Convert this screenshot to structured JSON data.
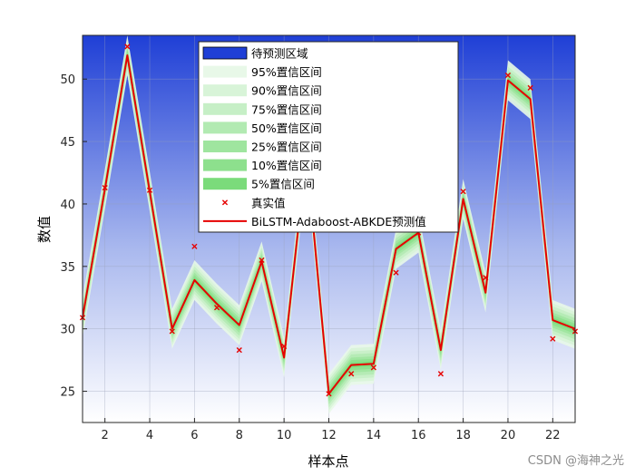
{
  "chart_data": {
    "type": "line",
    "title": "",
    "xlabel": "样本点",
    "ylabel": "数值",
    "xlim": [
      1,
      23
    ],
    "ylim": [
      22.5,
      53.5
    ],
    "xticks": [
      2,
      4,
      6,
      8,
      10,
      12,
      14,
      16,
      18,
      20,
      22
    ],
    "yticks": [
      25,
      30,
      35,
      40,
      45,
      50
    ],
    "grid": true,
    "legend_position": "top-center",
    "background": {
      "label": "待预测区域",
      "color_top": "#1f3fd6",
      "color_bottom": "#ffffff"
    },
    "x": [
      1,
      2,
      3,
      4,
      5,
      6,
      7,
      8,
      9,
      10,
      11,
      12,
      13,
      14,
      15,
      16,
      17,
      18,
      19,
      20,
      21,
      22,
      23
    ],
    "series": [
      {
        "name": "BiLSTM-Adaboost-ABKDE预测值",
        "color": "#e60000",
        "values": [
          30.9,
          41.2,
          51.9,
          41.0,
          30.0,
          33.9,
          32.0,
          30.3,
          35.4,
          27.7,
          44.0,
          24.8,
          27.1,
          27.2,
          36.4,
          37.7,
          28.3,
          40.4,
          32.9,
          49.9,
          48.4,
          30.7,
          30.0
        ]
      },
      {
        "name": "真实值",
        "color": "#e60000",
        "marker": "x",
        "values": [
          30.9,
          41.3,
          52.6,
          41.1,
          29.8,
          36.6,
          31.7,
          28.3,
          35.5,
          28.6,
          44.5,
          24.8,
          26.4,
          26.9,
          34.5,
          37.7,
          26.4,
          41.0,
          34.1,
          50.3,
          49.3,
          29.2,
          29.8
        ]
      }
    ],
    "intervals": [
      {
        "label": "95%置信区间",
        "halfwidth": 1.6,
        "color": "#e8f8e8"
      },
      {
        "label": "90%置信区间",
        "halfwidth": 1.35,
        "color": "#d8f4d8"
      },
      {
        "label": "75%置信区间",
        "halfwidth": 1.1,
        "color": "#c6efc6"
      },
      {
        "label": "50%置信区间",
        "halfwidth": 0.85,
        "color": "#b2eab2"
      },
      {
        "label": "25%置信区间",
        "halfwidth": 0.6,
        "color": "#9fe59f"
      },
      {
        "label": "10%置信区间",
        "halfwidth": 0.4,
        "color": "#8de08d"
      },
      {
        "label": "5%置信区间",
        "halfwidth": 0.2,
        "color": "#7bdb7b"
      }
    ]
  },
  "watermark": "CSDN @海神之光"
}
